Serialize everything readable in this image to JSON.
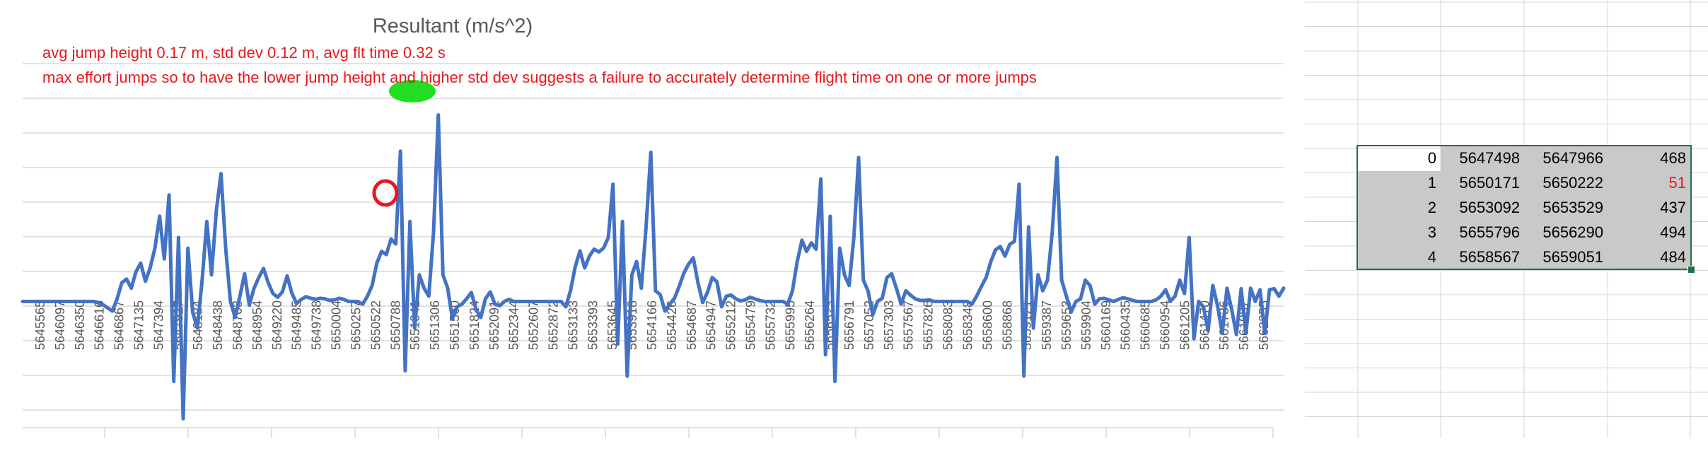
{
  "chart_data": {
    "type": "line",
    "title": "Resultant (m/s^2)",
    "annotations": [
      "avg jump height 0.17 m, std dev 0.12 m, avg flt time 0.32 s",
      "max effort jumps so to have the lower jump height and higher std dev suggests a failure to accurately determine flight time on one or more jumps"
    ],
    "x_tick_labels": [
      "5645565",
      "5646097",
      "5646350",
      "5646616",
      "5646867",
      "5647135",
      "5647394",
      "5647927",
      "5648184",
      "5648438",
      "5648703",
      "5648954",
      "5649220",
      "5649485",
      "5649738",
      "5650004",
      "5650257",
      "5650522",
      "5650788",
      "5651041",
      "5651306",
      "5651560",
      "5651824",
      "5652091",
      "5652344",
      "5652607",
      "5652872",
      "5653133",
      "5653393",
      "5653645",
      "5653918",
      "5654166",
      "5654426",
      "5654687",
      "5654947",
      "5655212",
      "5655479",
      "5655732",
      "5655995",
      "5656264",
      "5656523",
      "5656791",
      "5657052",
      "5657303",
      "5657567",
      "5657826",
      "5658083",
      "5658348",
      "5658600",
      "5658868",
      "5659121",
      "5659387",
      "5659653",
      "5659904",
      "5660169",
      "5660435",
      "5660685",
      "5660954",
      "5661205",
      "5661470",
      "5661736",
      "5661987",
      "5662255"
    ],
    "series": [
      {
        "color": "#4472c4",
        "values": [
          10,
          10,
          10,
          10,
          10,
          10,
          10,
          10,
          10,
          10,
          10,
          10,
          10,
          10,
          10,
          10,
          9.8,
          9.4,
          8.8,
          8.2,
          10.5,
          13.5,
          14.2,
          12.5,
          15.6,
          17.2,
          13.8,
          16.3,
          20,
          26,
          18,
          30,
          -5,
          22,
          -12,
          20,
          8,
          5,
          14,
          25,
          15,
          27,
          34,
          20,
          10,
          7,
          11,
          15.2,
          9.3,
          12.5,
          14.5,
          16.2,
          13.5,
          11.5,
          10.8,
          11.8,
          14.8,
          11.6,
          9.6,
          10.4,
          10.9,
          10.6,
          10.4,
          10.6,
          10.5,
          10.2,
          10.3,
          10.6,
          10.4,
          10,
          10,
          10,
          9.5,
          11,
          13,
          17.2,
          19.4,
          18.8,
          21.7,
          20.8,
          38.2,
          -3,
          25,
          5,
          15,
          12.5,
          11,
          23,
          45,
          15,
          12.5,
          6.8,
          9,
          9.5,
          10.5,
          11.7,
          8.5,
          7,
          10.5,
          11.8,
          9.5,
          9.2,
          10,
          10.4,
          10,
          10,
          10,
          10,
          10,
          10,
          10,
          10,
          10,
          10,
          10,
          9,
          12,
          16.5,
          19.5,
          16.3,
          18.5,
          19.8,
          19.3,
          20,
          22,
          32,
          2,
          25,
          -4,
          15,
          17.5,
          12.5,
          24,
          38,
          12,
          11.3,
          8.2,
          9.5,
          10.6,
          12.8,
          15.3,
          17,
          18.2,
          13.5,
          9.8,
          11.7,
          14.5,
          13.7,
          9,
          11,
          11.2,
          10.5,
          10.1,
          10.3,
          10.8,
          10.5,
          10.2,
          10,
          10,
          10,
          10,
          10,
          9.5,
          12,
          17.5,
          21.5,
          19.4,
          21,
          19.8,
          33,
          0,
          26,
          -5,
          20,
          15,
          13,
          22,
          37,
          14,
          12,
          7.5,
          10,
          10.6,
          14.5,
          15.2,
          12.5,
          9.5,
          12,
          11.2,
          10.5,
          10.2,
          10.2,
          10.3,
          10,
          10,
          10,
          10,
          10,
          10,
          10,
          10,
          9.5,
          11,
          12.8,
          14.5,
          17.5,
          19.7,
          20.3,
          18.5,
          20.7,
          21.3,
          32,
          -4,
          24,
          5,
          15,
          12,
          14,
          23,
          37,
          14,
          11,
          8,
          10,
          10.5,
          14,
          13,
          9.5,
          10.5,
          10.6,
          10.3,
          10,
          10.4,
          10.7,
          10.5,
          10.2,
          10,
          10,
          10,
          10,
          10.3,
          11,
          12.2,
          10,
          11,
          14,
          11.5,
          22,
          3,
          10,
          9,
          4.5,
          13,
          9.2,
          4,
          12.5,
          8.5,
          3.8,
          12.4,
          4,
          12.5,
          10,
          12.2,
          4,
          12.2,
          12.4,
          11,
          12.5
        ]
      }
    ],
    "ylim": [
      -15,
      48
    ],
    "grid": true
  },
  "sheet": {
    "rows": [
      {
        "idx": "0",
        "a": "5647498",
        "b": "5647966",
        "c": "468",
        "c_red": false
      },
      {
        "idx": "1",
        "a": "5650171",
        "b": "5650222",
        "c": "51",
        "c_red": true
      },
      {
        "idx": "2",
        "a": "5653092",
        "b": "5653529",
        "c": "437",
        "c_red": false
      },
      {
        "idx": "3",
        "a": "5655796",
        "b": "5656290",
        "c": "494",
        "c_red": false
      },
      {
        "idx": "4",
        "a": "5658567",
        "b": "5659051",
        "c": "484",
        "c_red": false
      }
    ]
  },
  "markup": {
    "circle_red": "#e8181c",
    "blob_green": "#22dd22"
  }
}
